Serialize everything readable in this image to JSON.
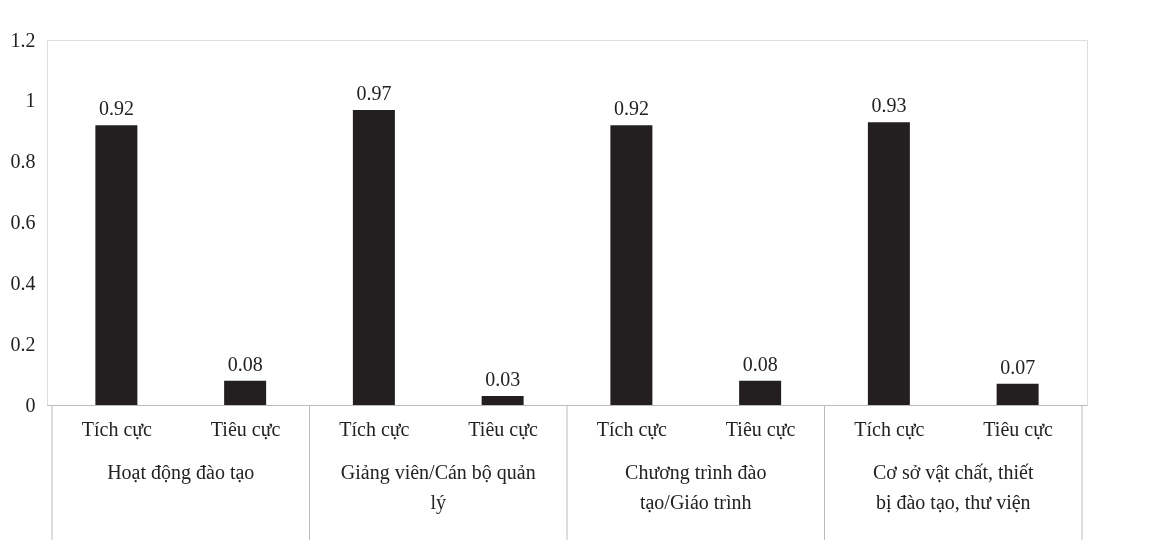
{
  "chart_data": {
    "type": "bar",
    "categories": [
      "Tích cực",
      "Tiêu cực",
      "Tích cực",
      "Tiêu cực",
      "Tích cực",
      "Tiêu cực",
      "Tích cực",
      "Tiêu cực"
    ],
    "values": [
      0.92,
      0.08,
      0.97,
      0.03,
      0.92,
      0.08,
      0.93,
      0.07
    ],
    "color": "#231f20",
    "ylim": [
      0,
      1.2
    ],
    "yticks": [
      0,
      0.2,
      0.4,
      0.6,
      0.8,
      1,
      1.2
    ],
    "data_labels": true,
    "grid": false,
    "annotations": [
      "Hoạt động đào tạo",
      "Giảng viên/Cán bộ quản lý",
      "Chương trình đào tạo/Giáo trình",
      "Cơ sở vật chất, thiết bị đào tạo, thư viện"
    ]
  }
}
